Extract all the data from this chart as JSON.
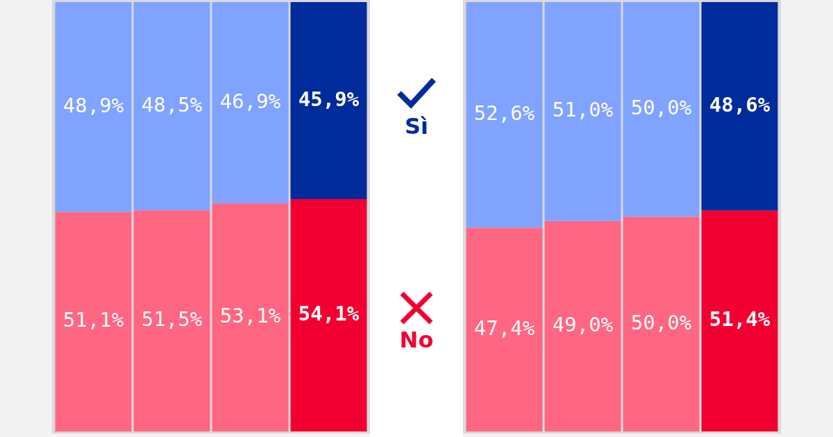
{
  "chart_data": [
    {
      "type": "bar",
      "stacked": true,
      "categories": [
        null,
        null,
        null,
        null
      ],
      "ylim": [
        0,
        100
      ],
      "tick_labels": false,
      "legend": "right",
      "series": [
        {
          "name": "No",
          "color": "#f20032",
          "colors": [
            "#ff6682",
            "#ff6682",
            "#ff6682",
            "#f20032"
          ],
          "values": [
            51.1,
            51.5,
            53.1,
            54.1
          ],
          "value_labels": [
            "51,1%",
            "51,5%",
            "53,1%",
            "54,1%"
          ]
        },
        {
          "name": "Sì",
          "color": "#002b9b",
          "colors": [
            "#80a3ff",
            "#80a3ff",
            "#80a3ff",
            "#002b9b"
          ],
          "values": [
            48.9,
            48.5,
            46.9,
            45.9
          ],
          "value_labels": [
            "48,9%",
            "48,5%",
            "46,9%",
            "45,9%"
          ]
        }
      ]
    },
    {
      "type": "bar",
      "stacked": true,
      "categories": [
        null,
        null,
        null,
        null
      ],
      "ylim": [
        0,
        100
      ],
      "tick_labels": false,
      "series": [
        {
          "color": "#f20032",
          "colors": [
            "#ff6682",
            "#ff6682",
            "#ff6682",
            "#f20032"
          ],
          "values": [
            47.4,
            49.0,
            50.0,
            51.4
          ],
          "value_labels": [
            "47,4%",
            "49,0%",
            "50,0%",
            "51,4%"
          ]
        },
        {
          "color": "#002b9b",
          "colors": [
            "#80a3ff",
            "#80a3ff",
            "#80a3ff",
            "#002b9b"
          ],
          "values": [
            52.6,
            51.0,
            50.0,
            48.6
          ],
          "value_labels": [
            "52,6%",
            "51,0%",
            "50,0%",
            "48,6%"
          ]
        }
      ]
    }
  ]
}
